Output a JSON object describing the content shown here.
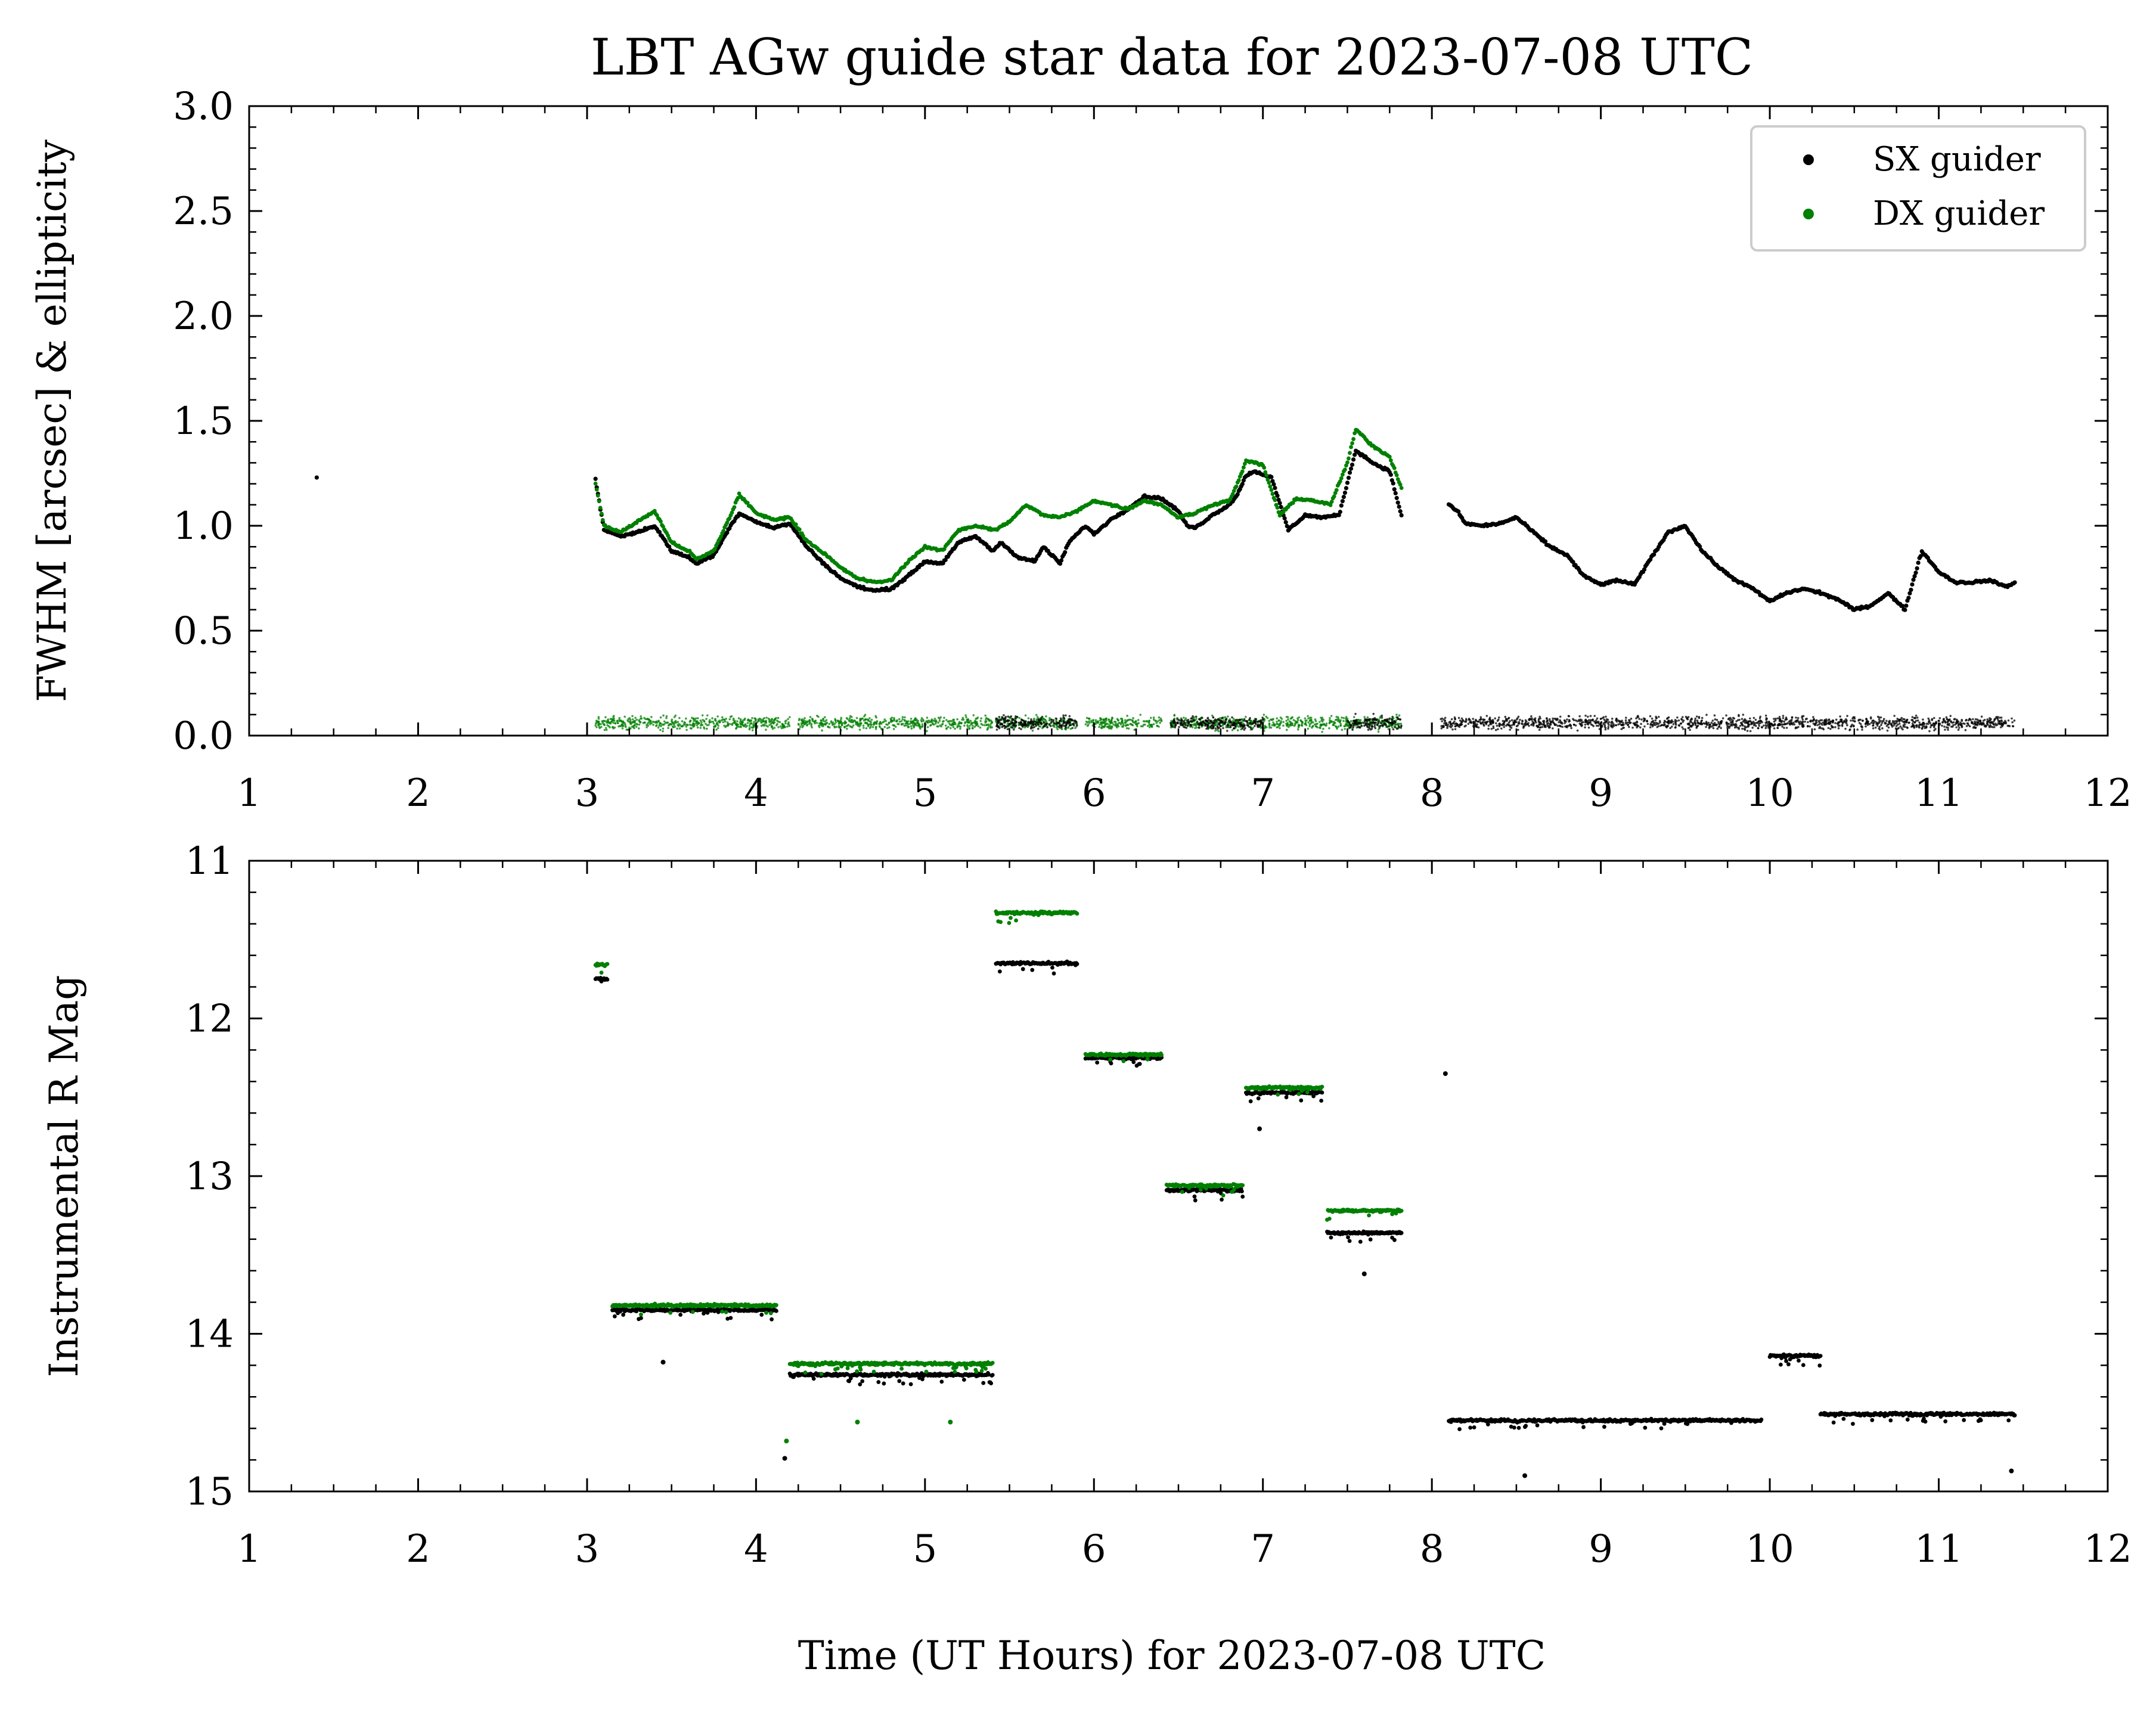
{
  "figure": {
    "title": "LBT AGw guide star data for 2023-07-08 UTC",
    "xlabel": "Time (UT Hours) for 2023-07-08 UTC"
  },
  "colors": {
    "sx": "#000000",
    "dx": "#008000",
    "legend_border": "#cccccc"
  },
  "legend": {
    "placement": "top-right",
    "entries": [
      {
        "label": "SX guider",
        "color": "#000000"
      },
      {
        "label": "DX guider",
        "color": "#008000"
      }
    ]
  },
  "chart_data": [
    {
      "type": "scatter",
      "ylabel": "FWHM [arcsec] & ellipticity",
      "xlim": [
        1,
        12
      ],
      "ylim": [
        0,
        3
      ],
      "y_inverted": false,
      "xticks": [
        "1",
        "2",
        "3",
        "4",
        "5",
        "6",
        "7",
        "8",
        "9",
        "10",
        "11",
        "12"
      ],
      "yticks": [
        "0.0",
        "0.5",
        "1.0",
        "1.5",
        "2.0",
        "2.5",
        "3.0"
      ],
      "series": [
        {
          "name": "SX guider",
          "color": "#000000",
          "fwhm_points": [
            [
              1.4,
              1.23
            ],
            [
              3.05,
              1.22
            ],
            [
              3.1,
              0.98
            ],
            [
              3.2,
              0.95
            ],
            [
              3.3,
              0.97
            ],
            [
              3.4,
              1.0
            ],
            [
              3.5,
              0.88
            ],
            [
              3.6,
              0.85
            ],
            [
              3.65,
              0.82
            ],
            [
              3.75,
              0.86
            ],
            [
              3.85,
              1.0
            ],
            [
              3.9,
              1.06
            ],
            [
              4.0,
              1.02
            ],
            [
              4.1,
              0.99
            ],
            [
              4.2,
              1.01
            ],
            [
              4.3,
              0.9
            ],
            [
              4.4,
              0.82
            ],
            [
              4.5,
              0.75
            ],
            [
              4.6,
              0.71
            ],
            [
              4.7,
              0.69
            ],
            [
              4.8,
              0.7
            ],
            [
              4.9,
              0.76
            ],
            [
              5.0,
              0.83
            ],
            [
              5.1,
              0.82
            ],
            [
              5.2,
              0.92
            ],
            [
              5.3,
              0.95
            ],
            [
              5.4,
              0.88
            ],
            [
              5.45,
              0.92
            ],
            [
              5.55,
              0.85
            ],
            [
              5.65,
              0.83
            ],
            [
              5.7,
              0.9
            ],
            [
              5.8,
              0.82
            ],
            [
              5.85,
              0.92
            ],
            [
              5.95,
              1.0
            ],
            [
              6.0,
              0.96
            ],
            [
              6.1,
              1.03
            ],
            [
              6.2,
              1.08
            ],
            [
              6.3,
              1.14
            ],
            [
              6.4,
              1.13
            ],
            [
              6.5,
              1.07
            ],
            [
              6.55,
              1.0
            ],
            [
              6.6,
              0.99
            ],
            [
              6.7,
              1.05
            ],
            [
              6.8,
              1.1
            ],
            [
              6.85,
              1.15
            ],
            [
              6.9,
              1.24
            ],
            [
              6.95,
              1.26
            ],
            [
              7.05,
              1.23
            ],
            [
              7.15,
              0.98
            ],
            [
              7.25,
              1.05
            ],
            [
              7.35,
              1.04
            ],
            [
              7.45,
              1.05
            ],
            [
              7.55,
              1.36
            ],
            [
              7.65,
              1.3
            ],
            [
              7.75,
              1.26
            ],
            [
              7.82,
              1.05
            ],
            [
              8.1,
              1.1
            ],
            [
              8.15,
              1.07
            ],
            [
              8.2,
              1.01
            ],
            [
              8.3,
              1.0
            ],
            [
              8.4,
              1.01
            ],
            [
              8.5,
              1.04
            ],
            [
              8.6,
              0.97
            ],
            [
              8.7,
              0.9
            ],
            [
              8.8,
              0.86
            ],
            [
              8.9,
              0.76
            ],
            [
              9.0,
              0.72
            ],
            [
              9.1,
              0.74
            ],
            [
              9.2,
              0.72
            ],
            [
              9.3,
              0.85
            ],
            [
              9.4,
              0.97
            ],
            [
              9.5,
              1.0
            ],
            [
              9.6,
              0.88
            ],
            [
              9.7,
              0.8
            ],
            [
              9.8,
              0.74
            ],
            [
              9.9,
              0.7
            ],
            [
              10.0,
              0.64
            ],
            [
              10.1,
              0.68
            ],
            [
              10.2,
              0.7
            ],
            [
              10.3,
              0.68
            ],
            [
              10.4,
              0.65
            ],
            [
              10.5,
              0.6
            ],
            [
              10.6,
              0.62
            ],
            [
              10.7,
              0.68
            ],
            [
              10.8,
              0.6
            ],
            [
              10.9,
              0.88
            ],
            [
              11.0,
              0.78
            ],
            [
              11.1,
              0.73
            ],
            [
              11.2,
              0.73
            ],
            [
              11.3,
              0.74
            ],
            [
              11.4,
              0.71
            ],
            [
              11.45,
              0.73
            ]
          ]
        },
        {
          "name": "DX guider",
          "color": "#008000",
          "fwhm_points": [
            [
              3.05,
              1.2
            ],
            [
              3.1,
              1.0
            ],
            [
              3.2,
              0.97
            ],
            [
              3.3,
              1.02
            ],
            [
              3.4,
              1.07
            ],
            [
              3.5,
              0.92
            ],
            [
              3.6,
              0.88
            ],
            [
              3.65,
              0.84
            ],
            [
              3.75,
              0.88
            ],
            [
              3.85,
              1.05
            ],
            [
              3.9,
              1.15
            ],
            [
              4.0,
              1.06
            ],
            [
              4.1,
              1.03
            ],
            [
              4.2,
              1.04
            ],
            [
              4.3,
              0.93
            ],
            [
              4.4,
              0.87
            ],
            [
              4.5,
              0.8
            ],
            [
              4.6,
              0.75
            ],
            [
              4.7,
              0.73
            ],
            [
              4.8,
              0.74
            ],
            [
              4.9,
              0.83
            ],
            [
              5.0,
              0.9
            ],
            [
              5.1,
              0.88
            ],
            [
              5.2,
              0.98
            ],
            [
              5.3,
              1.0
            ],
            [
              5.42,
              0.98
            ],
            [
              5.5,
              1.02
            ],
            [
              5.6,
              1.1
            ],
            [
              5.7,
              1.05
            ],
            [
              5.8,
              1.04
            ],
            [
              5.9,
              1.07
            ],
            [
              6.0,
              1.12
            ],
            [
              6.1,
              1.1
            ],
            [
              6.2,
              1.08
            ],
            [
              6.3,
              1.12
            ],
            [
              6.4,
              1.1
            ],
            [
              6.5,
              1.04
            ],
            [
              6.6,
              1.06
            ],
            [
              6.7,
              1.1
            ],
            [
              6.8,
              1.12
            ],
            [
              6.85,
              1.2
            ],
            [
              6.9,
              1.31
            ],
            [
              7.0,
              1.29
            ],
            [
              7.1,
              1.05
            ],
            [
              7.2,
              1.13
            ],
            [
              7.3,
              1.12
            ],
            [
              7.4,
              1.1
            ],
            [
              7.5,
              1.3
            ],
            [
              7.55,
              1.46
            ],
            [
              7.65,
              1.38
            ],
            [
              7.75,
              1.33
            ],
            [
              7.82,
              1.18
            ]
          ]
        }
      ],
      "ellipticity": {
        "description_visible": false,
        "dx_segments": [
          [
            3.05,
            3.7
          ],
          [
            3.7,
            4.2
          ],
          [
            4.25,
            5.4
          ],
          [
            5.42,
            5.9
          ],
          [
            5.95,
            6.4
          ],
          [
            6.45,
            7.0
          ],
          [
            7.0,
            7.5
          ],
          [
            7.5,
            7.82
          ]
        ],
        "sx_segments": [
          [
            8.05,
            11.45
          ]
        ],
        "level": 0.06
      }
    },
    {
      "type": "scatter",
      "ylabel": "Instrumental R Mag",
      "xlim": [
        1,
        12
      ],
      "ylim": [
        11,
        15
      ],
      "y_inverted": true,
      "xticks": [
        "1",
        "2",
        "3",
        "4",
        "5",
        "6",
        "7",
        "8",
        "9",
        "10",
        "11",
        "12"
      ],
      "yticks": [
        "11",
        "12",
        "13",
        "14",
        "15"
      ],
      "segments": [
        {
          "series": "DX guider",
          "x": [
            3.05,
            3.12
          ],
          "y": 11.66
        },
        {
          "series": "SX guider",
          "x": [
            3.05,
            3.12
          ],
          "y": 11.75
        },
        {
          "series": "DX guider",
          "x": [
            3.15,
            4.12
          ],
          "y": 13.82
        },
        {
          "series": "SX guider",
          "x": [
            3.15,
            4.12
          ],
          "y": 13.85
        },
        {
          "series": "DX guider",
          "x": [
            4.2,
            5.4
          ],
          "y": 14.19
        },
        {
          "series": "SX guider",
          "x": [
            4.2,
            5.4
          ],
          "y": 14.26
        },
        {
          "series": "DX guider",
          "x": [
            5.42,
            5.9
          ],
          "y": 11.33
        },
        {
          "series": "SX guider",
          "x": [
            5.42,
            5.9
          ],
          "y": 11.65
        },
        {
          "series": "DX guider",
          "x": [
            5.95,
            6.4
          ],
          "y": 12.23
        },
        {
          "series": "SX guider",
          "x": [
            5.95,
            6.4
          ],
          "y": 12.25
        },
        {
          "series": "DX guider",
          "x": [
            6.43,
            6.88
          ],
          "y": 13.06
        },
        {
          "series": "SX guider",
          "x": [
            6.43,
            6.88
          ],
          "y": 13.09
        },
        {
          "series": "DX guider",
          "x": [
            6.9,
            7.35
          ],
          "y": 12.44
        },
        {
          "series": "SX guider",
          "x": [
            6.9,
            7.35
          ],
          "y": 12.47
        },
        {
          "series": "DX guider",
          "x": [
            7.38,
            7.82
          ],
          "y": 13.22
        },
        {
          "series": "SX guider",
          "x": [
            7.38,
            7.82
          ],
          "y": 13.36
        },
        {
          "series": "SX guider",
          "x": [
            8.1,
            9.95
          ],
          "y": 14.55
        },
        {
          "series": "SX guider",
          "x": [
            10.0,
            10.3
          ],
          "y": 14.14
        },
        {
          "series": "SX guider",
          "x": [
            10.3,
            11.45
          ],
          "y": 14.51
        }
      ],
      "outliers": [
        {
          "series": "SX guider",
          "x": 3.45,
          "y": 14.18
        },
        {
          "series": "DX guider",
          "x": 4.18,
          "y": 14.68
        },
        {
          "series": "SX guider",
          "x": 4.17,
          "y": 14.79
        },
        {
          "series": "DX guider",
          "x": 4.6,
          "y": 14.56
        },
        {
          "series": "DX guider",
          "x": 5.15,
          "y": 14.56
        },
        {
          "series": "SX guider",
          "x": 8.08,
          "y": 12.35
        },
        {
          "series": "SX guider",
          "x": 8.55,
          "y": 14.9
        },
        {
          "series": "SX guider",
          "x": 11.43,
          "y": 14.87
        },
        {
          "series": "SX guider",
          "x": 6.98,
          "y": 12.7
        },
        {
          "series": "SX guider",
          "x": 7.6,
          "y": 13.62
        }
      ]
    }
  ]
}
